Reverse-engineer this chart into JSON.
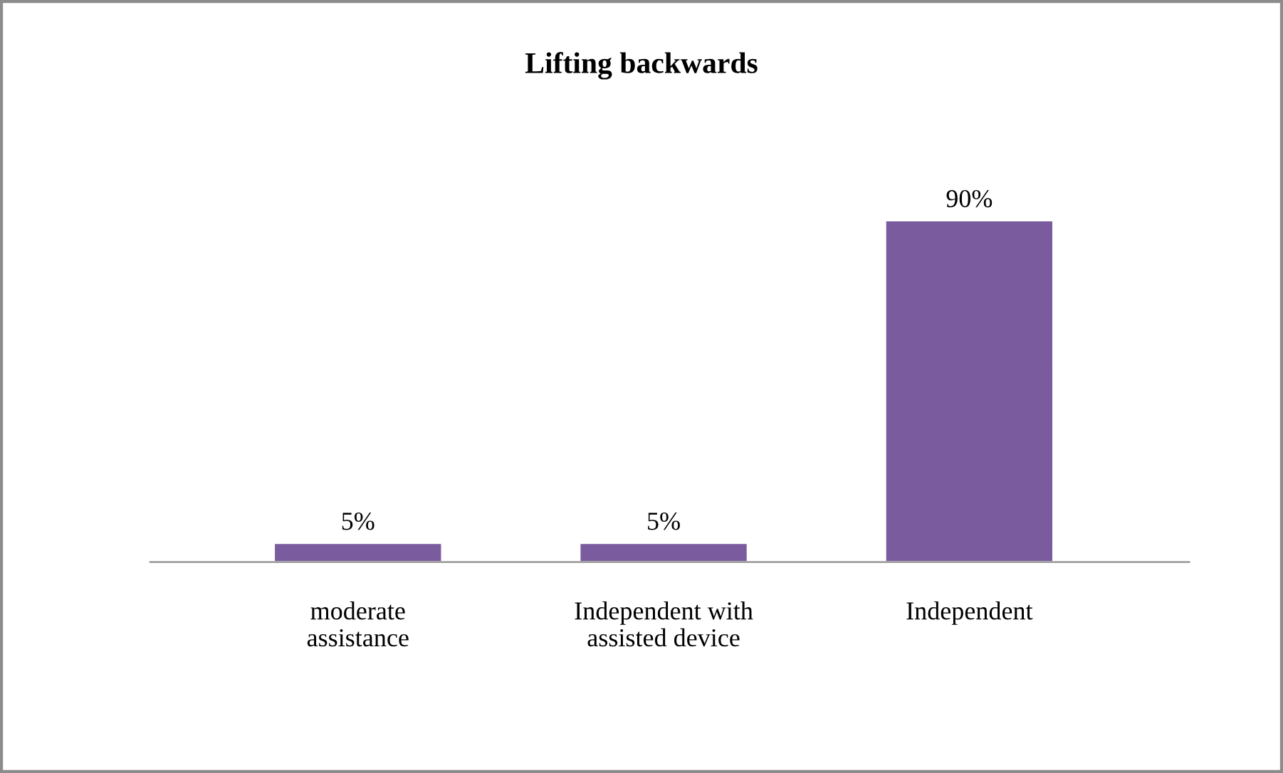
{
  "chart_data": {
    "type": "bar",
    "title": "Lifting backwards",
    "categories": [
      "moderate\nassistance",
      "Independent with\nassisted device",
      "Independent"
    ],
    "values": [
      5,
      5,
      90
    ],
    "color": "#7a5c9e",
    "value_labels": [
      "5%",
      "5%",
      "90%"
    ],
    "grid": false,
    "legend": false
  }
}
